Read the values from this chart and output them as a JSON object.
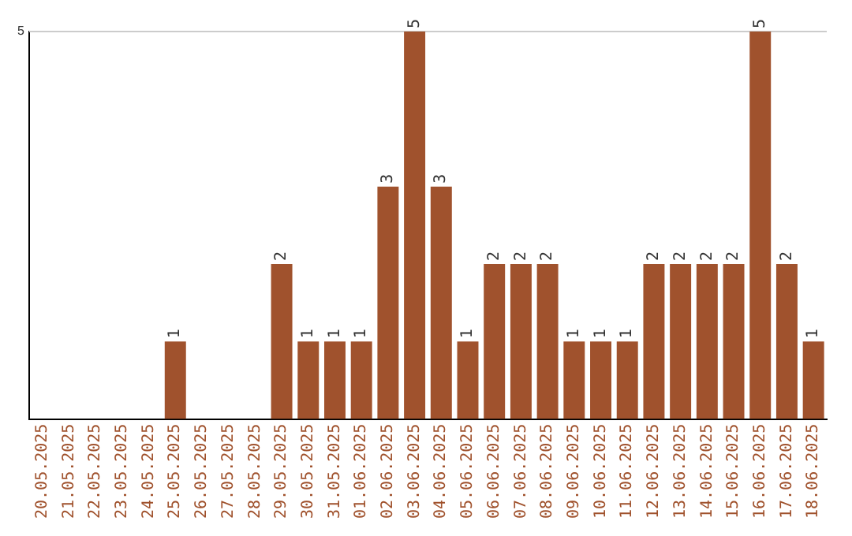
{
  "chart_data": {
    "type": "bar",
    "categories": [
      "20.05.2025",
      "21.05.2025",
      "22.05.2025",
      "23.05.2025",
      "24.05.2025",
      "25.05.2025",
      "26.05.2025",
      "27.05.2025",
      "28.05.2025",
      "29.05.2025",
      "30.05.2025",
      "31.05.2025",
      "01.06.2025",
      "02.06.2025",
      "03.06.2025",
      "04.06.2025",
      "05.06.2025",
      "06.06.2025",
      "07.06.2025",
      "08.06.2025",
      "09.06.2025",
      "10.06.2025",
      "11.06.2025",
      "12.06.2025",
      "13.06.2025",
      "14.06.2025",
      "15.06.2025",
      "16.06.2025",
      "17.06.2025",
      "18.06.2025"
    ],
    "values": [
      0,
      0,
      0,
      0,
      0,
      1,
      0,
      0,
      0,
      2,
      1,
      1,
      1,
      3,
      5,
      3,
      1,
      2,
      2,
      2,
      1,
      1,
      1,
      2,
      2,
      2,
      2,
      5,
      2,
      1
    ],
    "value_labels": [
      null,
      null,
      null,
      null,
      null,
      "1",
      null,
      null,
      null,
      "2",
      "1",
      "1",
      "1",
      "3",
      "5",
      "3",
      "1",
      "2",
      "2",
      "2",
      "1",
      "1",
      "1",
      "2",
      "2",
      "2",
      "2",
      "5",
      "2",
      "1"
    ],
    "color": "#a0522d",
    "ylim": [
      0,
      5
    ],
    "yticks": [
      5
    ],
    "ref_lines": [
      {
        "axis": "y",
        "value": 5,
        "color": "#cccccc"
      }
    ],
    "legend": false
  }
}
